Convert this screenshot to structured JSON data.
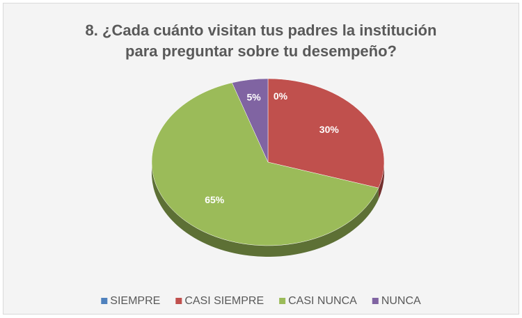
{
  "chart_data": {
    "type": "pie",
    "title": [
      "8. ¿Cada cuánto visitan tus padres la institución",
      "para preguntar sobre tu desempeño?"
    ],
    "categories": [
      "SIEMPRE",
      "CASI SIEMPRE",
      "CASI NUNCA",
      "NUNCA"
    ],
    "values": [
      0,
      30,
      65,
      5
    ],
    "value_labels": [
      "0%",
      "30%",
      "65%",
      "5%"
    ],
    "colors": [
      "#4f81bd",
      "#c0504d",
      "#9bbb59",
      "#8064a2"
    ],
    "legend": "bottom"
  }
}
